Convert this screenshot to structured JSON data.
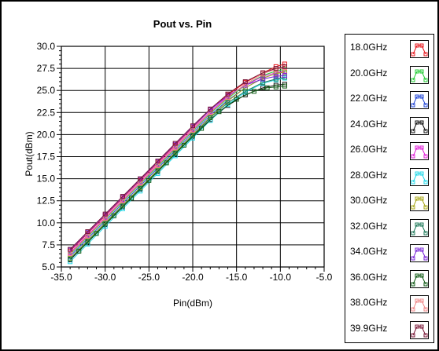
{
  "chart_data": {
    "type": "line",
    "title": "Pout vs. Pin",
    "xlabel": "Pin(dBm)",
    "ylabel": "Pout(dBm)",
    "xlim": [
      -35.0,
      -5.0
    ],
    "ylim": [
      5.0,
      30.0
    ],
    "x_ticks": [
      "-35.0",
      "-30.0",
      "-25.0",
      "-20.0",
      "-15.0",
      "-10.0",
      "-5.0"
    ],
    "y_ticks": [
      "5.0",
      "7.5",
      "10.0",
      "12.5",
      "15.0",
      "17.5",
      "20.0",
      "22.5",
      "25.0",
      "27.5",
      "30.0"
    ],
    "grid": true,
    "legend_position": "right",
    "marker": "square",
    "series": [
      {
        "name": "18.0GHz",
        "color": "#e8151b",
        "x": [
          -34.0,
          -32.0,
          -30.0,
          -28.0,
          -26.0,
          -24.0,
          -22.0,
          -20.0,
          -18.0,
          -16.0,
          -14.0,
          -12.0,
          -10.5,
          -9.5
        ],
        "y": [
          6.8,
          8.8,
          10.8,
          12.8,
          14.8,
          16.8,
          18.8,
          20.8,
          22.8,
          24.5,
          25.9,
          27.0,
          27.7,
          28.0
        ]
      },
      {
        "name": "20.0GHz",
        "color": "#22cc33",
        "x": [
          -34.0,
          -32.0,
          -30.0,
          -28.0,
          -26.0,
          -24.0,
          -22.0,
          -20.0,
          -18.0,
          -16.0,
          -14.0,
          -12.0,
          -10.5,
          -9.5
        ],
        "y": [
          6.4,
          8.4,
          10.4,
          12.4,
          14.4,
          16.4,
          18.4,
          20.4,
          22.4,
          24.1,
          25.6,
          26.7,
          27.2,
          27.4
        ]
      },
      {
        "name": "22.0GHz",
        "color": "#1f44d6",
        "x": [
          -34.0,
          -32.0,
          -30.0,
          -28.0,
          -26.0,
          -24.0,
          -22.0,
          -20.0,
          -18.0,
          -16.0,
          -14.0,
          -12.0,
          -10.5,
          -9.5
        ],
        "y": [
          6.2,
          8.2,
          10.2,
          12.2,
          14.2,
          16.2,
          18.2,
          20.2,
          22.2,
          23.9,
          25.3,
          26.4,
          26.9,
          27.1
        ]
      },
      {
        "name": "24.0GHz",
        "color": "#111111",
        "x": [
          -34.0,
          -32.0,
          -30.0,
          -28.0,
          -26.0,
          -24.0,
          -22.0,
          -20.0,
          -18.0,
          -16.0,
          -14.0,
          -12.0,
          -10.5,
          -9.5
        ],
        "y": [
          5.8,
          7.8,
          9.8,
          11.8,
          13.8,
          15.8,
          17.8,
          19.8,
          21.7,
          23.3,
          24.5,
          25.3,
          25.6,
          25.7
        ]
      },
      {
        "name": "26.0GHz",
        "color": "#e020d8",
        "x": [
          -34.0,
          -32.0,
          -30.0,
          -28.0,
          -26.0,
          -24.0,
          -22.0,
          -20.0,
          -18.0,
          -16.0,
          -14.0,
          -12.0,
          -10.5,
          -9.5
        ],
        "y": [
          6.6,
          8.6,
          10.6,
          12.6,
          14.6,
          16.6,
          18.6,
          20.6,
          22.6,
          24.3,
          25.6,
          26.6,
          27.0,
          27.2
        ]
      },
      {
        "name": "28.0GHz",
        "color": "#22d8e8",
        "x": [
          -34.0,
          -32.0,
          -30.0,
          -28.0,
          -26.0,
          -24.0,
          -22.0,
          -20.0,
          -18.0,
          -16.0,
          -14.0,
          -12.0,
          -10.5,
          -9.5
        ],
        "y": [
          5.6,
          7.6,
          9.6,
          11.6,
          13.6,
          15.6,
          17.6,
          19.6,
          21.6,
          23.4,
          24.8,
          25.8,
          26.2,
          26.4
        ]
      },
      {
        "name": "30.0GHz",
        "color": "#a8a81a",
        "x": [
          -34.0,
          -32.0,
          -30.0,
          -28.0,
          -26.0,
          -24.0,
          -22.0,
          -20.0,
          -18.0,
          -16.0,
          -14.0,
          -12.0,
          -10.5,
          -9.5
        ],
        "y": [
          6.0,
          8.0,
          10.0,
          12.0,
          14.0,
          16.0,
          18.0,
          20.0,
          22.0,
          23.8,
          25.3,
          26.4,
          26.9,
          27.1
        ]
      },
      {
        "name": "32.0GHz",
        "color": "#1f7a5a",
        "x": [
          -34.0,
          -32.0,
          -30.0,
          -28.0,
          -26.0,
          -24.0,
          -22.0,
          -20.0,
          -18.0,
          -16.0,
          -14.0,
          -12.0,
          -10.5,
          -9.5
        ],
        "y": [
          5.9,
          7.9,
          9.9,
          11.9,
          13.9,
          15.9,
          17.9,
          19.9,
          21.9,
          23.6,
          24.9,
          25.9,
          26.3,
          26.5
        ]
      },
      {
        "name": "34.0GHz",
        "color": "#7a26d8",
        "x": [
          -34.0,
          -32.0,
          -30.0,
          -28.0,
          -26.0,
          -24.0,
          -22.0,
          -20.0,
          -18.0,
          -16.0,
          -14.0,
          -12.0,
          -10.5,
          -9.5
        ],
        "y": [
          6.9,
          8.9,
          10.9,
          12.9,
          14.9,
          16.9,
          18.9,
          20.9,
          22.8,
          24.4,
          25.6,
          26.3,
          26.6,
          26.7
        ]
      },
      {
        "name": "36.0GHz",
        "color": "#0f5a14",
        "x": [
          -33.0,
          -31.0,
          -29.0,
          -27.0,
          -25.0,
          -23.0,
          -21.0,
          -19.0,
          -17.0,
          -15.0,
          -13.0,
          -11.5,
          -10.5,
          -9.5
        ],
        "y": [
          6.8,
          8.8,
          10.8,
          12.8,
          14.8,
          16.8,
          18.8,
          20.7,
          22.6,
          24.0,
          24.9,
          25.3,
          25.4,
          25.5
        ]
      },
      {
        "name": "38.0GHz",
        "color": "#f08a8a",
        "x": [
          -34.0,
          -32.0,
          -30.0,
          -28.0,
          -26.0,
          -24.0,
          -22.0,
          -20.0,
          -18.0,
          -16.0,
          -14.0,
          -12.0,
          -10.5,
          -9.5
        ],
        "y": [
          6.5,
          8.5,
          10.5,
          12.5,
          14.5,
          16.5,
          18.5,
          20.5,
          22.5,
          24.2,
          25.7,
          26.9,
          27.4,
          27.6
        ]
      },
      {
        "name": "39.9GHz",
        "color": "#7a1838",
        "x": [
          -34.0,
          -32.0,
          -30.0,
          -28.0,
          -26.0,
          -24.0,
          -22.0,
          -20.0,
          -18.0,
          -16.0,
          -14.0,
          -12.0,
          -10.5,
          -9.5
        ],
        "y": [
          7.0,
          9.0,
          11.0,
          13.0,
          15.0,
          17.0,
          19.0,
          21.0,
          22.9,
          24.6,
          26.0,
          27.0,
          27.5,
          27.7
        ]
      }
    ]
  }
}
